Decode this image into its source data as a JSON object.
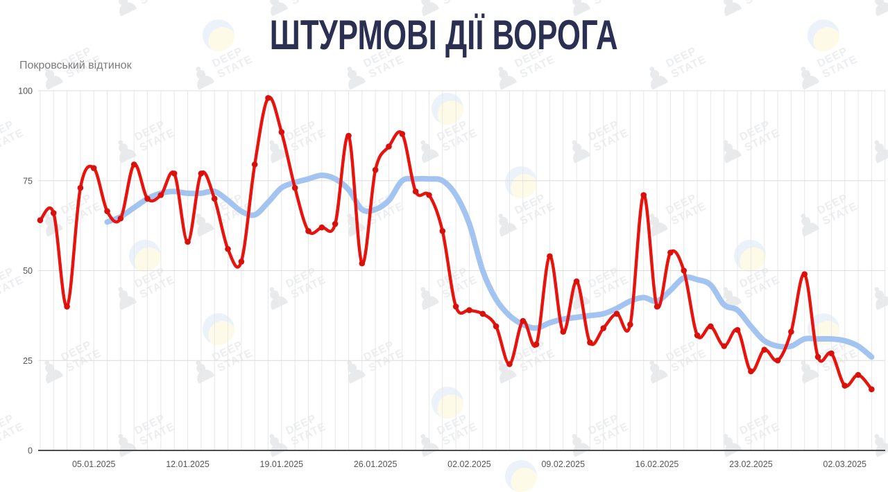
{
  "title": "ШТУРМОВІ ДІЇ ВОРОГА",
  "subtitle": "Покровський відтинок",
  "watermark": {
    "line1": "DEEP",
    "line2": "STATE",
    "pawn_icon": "chess-pawn-icon",
    "roundel_icon": "blue-yellow-roundel-icon"
  },
  "colors": {
    "background": "#ffffff",
    "title": "#2b3053",
    "subtitle": "#7b7b7b",
    "daily_line": "#e9130d",
    "daily_point": "#d81009",
    "average_line": "#a3c3f1",
    "grid_vertical": "#e7e7e7",
    "grid_horizontal": "#dcdcdc",
    "axis_line": "#4d4d4d",
    "tick_label": "#565656"
  },
  "chart_data": {
    "type": "line",
    "title": "ШТУРМОВІ ДІЇ ВОРОГА",
    "subtitle": "Покровський відтинок",
    "grid": true,
    "legend": "none",
    "ylim": [
      0,
      100
    ],
    "y_ticks": [
      0,
      25,
      50,
      75,
      100
    ],
    "start_date": "01.01.2025",
    "end_date": "04.03.2025",
    "x_tick_labels": [
      "05.01.2025",
      "12.01.2025",
      "19.01.2025",
      "26.01.2025",
      "02.02.2025",
      "09.02.2025",
      "16.02.2025",
      "23.02.2025",
      "02.03.2025"
    ],
    "x_tick_day_indices": [
      4,
      11,
      18,
      25,
      32,
      39,
      46,
      53,
      60
    ],
    "days_total": 63,
    "series": [
      {
        "name": "daily-assaults",
        "style": "line-with-points",
        "color": "#e9130d",
        "start_day_index": 0,
        "values": [
          64,
          66,
          40,
          73,
          78.5,
          66.5,
          64.5,
          79.5,
          70,
          71,
          77,
          58,
          77,
          70,
          56,
          52.5,
          79.5,
          98,
          88.5,
          73,
          61,
          62,
          63,
          87.5,
          52,
          78,
          84.5,
          88,
          72,
          71,
          61,
          40,
          39,
          38,
          34.5,
          24,
          36,
          29.5,
          54,
          33,
          47,
          30,
          34,
          38,
          35,
          71,
          40,
          55,
          50,
          32,
          34.5,
          29,
          33.5,
          22,
          28,
          25,
          33,
          49,
          26,
          27,
          18,
          21,
          17
        ]
      },
      {
        "name": "moving-average",
        "style": "thick-smooth-line",
        "color": "#a3c3f1",
        "start_day_index": 5,
        "values": [
          63.5,
          65,
          67.5,
          70,
          71.5,
          72,
          71.5,
          71.5,
          72,
          69.5,
          66.5,
          65.5,
          69,
          73,
          74.5,
          75.5,
          76.5,
          75.5,
          72.5,
          67,
          67,
          69.5,
          75,
          75.5,
          75.5,
          75,
          71,
          63,
          50,
          42,
          37.5,
          35,
          34,
          35.5,
          36.5,
          37,
          37.5,
          38,
          39.5,
          41.5,
          42.5,
          41.5,
          44.5,
          48,
          47.5,
          46,
          40.5,
          39,
          34.5,
          30.5,
          29,
          29,
          31,
          31,
          31,
          30.5,
          29,
          26
        ]
      }
    ]
  }
}
